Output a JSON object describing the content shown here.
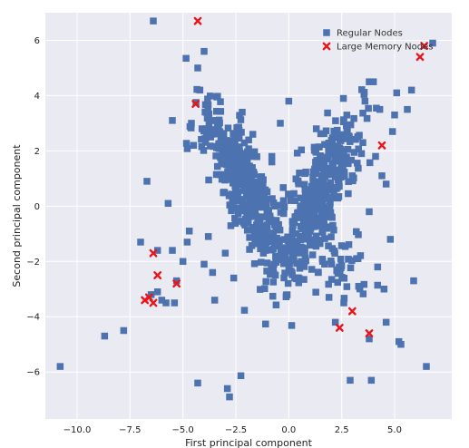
{
  "chart_data": {
    "type": "scatter",
    "xlabel": "First principal component",
    "ylabel": "Second principal component",
    "xlim": [
      -11.5,
      7.7
    ],
    "ylim": [
      -7.7,
      7.0
    ],
    "xticks": [
      -10.0,
      -7.5,
      -5.0,
      -2.5,
      0.0,
      2.5,
      5.0
    ],
    "xtick_labels": [
      "−10.0",
      "−7.5",
      "−5.0",
      "−2.5",
      "0.0",
      "2.5",
      "5.0"
    ],
    "yticks": [
      -6,
      -4,
      -2,
      0,
      2,
      4,
      6
    ],
    "ytick_labels": [
      "−6",
      "−4",
      "−2",
      "0",
      "2",
      "4",
      "6"
    ],
    "grid": true,
    "legend_position": "top-right",
    "colors": {
      "regular": "#4c72b0",
      "large": "#e8161b",
      "background": "#eaeaf2",
      "grid": "#ffffff"
    },
    "series": [
      {
        "name": "Regular Nodes",
        "marker": "square",
        "points": [
          [
            -10.8,
            -5.8
          ],
          [
            -8.7,
            -4.7
          ],
          [
            -7.8,
            -4.5
          ],
          [
            -7.0,
            -1.3
          ],
          [
            -6.7,
            0.9
          ],
          [
            -6.4,
            6.7
          ],
          [
            -6.5,
            -3.2
          ],
          [
            -6.2,
            -3.1
          ],
          [
            -6.2,
            -1.6
          ],
          [
            -6.0,
            -3.4
          ],
          [
            -5.8,
            -3.5
          ],
          [
            -5.7,
            0.1
          ],
          [
            -5.5,
            3.1
          ],
          [
            -5.5,
            -1.6
          ],
          [
            -5.4,
            -3.5
          ],
          [
            -5.3,
            -2.7
          ],
          [
            -5.0,
            -2.0
          ],
          [
            -4.8,
            -1.3
          ],
          [
            -4.7,
            -0.9
          ],
          [
            -4.6,
            3.0
          ],
          [
            -4.5,
            2.2
          ],
          [
            -4.3,
            5.0
          ],
          [
            -4.2,
            4.2
          ],
          [
            -4.1,
            2.8
          ],
          [
            -4.0,
            5.6
          ],
          [
            -4.0,
            -2.1
          ],
          [
            -3.8,
            -1.1
          ],
          [
            -3.6,
            -2.4
          ],
          [
            -3.5,
            3.1
          ],
          [
            -3.5,
            -3.4
          ],
          [
            -4.3,
            -6.4
          ],
          [
            -2.9,
            -6.6
          ],
          [
            -2.8,
            -6.9
          ],
          [
            -2.6,
            -2.6
          ],
          [
            -3.2,
            2.5
          ],
          [
            -2.0,
            1.6
          ],
          [
            -1.5,
            0.3
          ],
          [
            -1.2,
            -1.7
          ],
          [
            -0.8,
            1.8
          ],
          [
            -0.4,
            3.0
          ],
          [
            0.0,
            3.8
          ],
          [
            -0.6,
            -0.7
          ],
          [
            0.2,
            -0.7
          ],
          [
            0.5,
            1.2
          ],
          [
            0.8,
            -1.0
          ],
          [
            1.3,
            2.8
          ],
          [
            1.6,
            -2.0
          ],
          [
            1.9,
            -3.3
          ],
          [
            2.0,
            0.6
          ],
          [
            2.4,
            -2.2
          ],
          [
            2.2,
            -4.2
          ],
          [
            2.6,
            -3.5
          ],
          [
            2.9,
            -6.3
          ],
          [
            3.0,
            1.1
          ],
          [
            3.2,
            -1.9
          ],
          [
            3.3,
            -2.9
          ],
          [
            3.5,
            2.3
          ],
          [
            3.6,
            3.8
          ],
          [
            3.8,
            4.5
          ],
          [
            3.8,
            -0.2
          ],
          [
            3.8,
            -4.8
          ],
          [
            3.9,
            -6.3
          ],
          [
            4.1,
            1.8
          ],
          [
            4.2,
            -2.2
          ],
          [
            4.3,
            3.5
          ],
          [
            4.4,
            1.1
          ],
          [
            4.5,
            -3.0
          ],
          [
            4.6,
            -4.2
          ],
          [
            4.6,
            0.8
          ],
          [
            4.8,
            -1.2
          ],
          [
            4.9,
            2.7
          ],
          [
            5.0,
            3.3
          ],
          [
            5.1,
            4.1
          ],
          [
            5.2,
            -4.9
          ],
          [
            5.3,
            -5.0
          ],
          [
            5.6,
            3.5
          ],
          [
            5.8,
            4.2
          ],
          [
            5.9,
            -2.7
          ],
          [
            6.5,
            -5.8
          ],
          [
            6.8,
            5.9
          ],
          [
            -1.1,
            -1.6
          ],
          [
            -0.8,
            1.6
          ],
          [
            0.3,
            0.2
          ],
          [
            1.4,
            -2.4
          ],
          [
            -1.7,
            2.6
          ],
          [
            -2.2,
            3.4
          ],
          [
            -3.0,
            -1.7
          ],
          [
            4.0,
            4.5
          ]
        ]
      },
      {
        "name": "Large Memory Nodes",
        "marker": "x",
        "points": [
          [
            -4.3,
            6.7
          ],
          [
            -4.4,
            3.7
          ],
          [
            -6.4,
            -1.7
          ],
          [
            -6.2,
            -2.5
          ],
          [
            -5.3,
            -2.8
          ],
          [
            -6.8,
            -3.4
          ],
          [
            -6.6,
            -3.3
          ],
          [
            -6.4,
            -3.5
          ],
          [
            3.0,
            -3.8
          ],
          [
            2.4,
            -4.4
          ],
          [
            3.8,
            -4.6
          ],
          [
            4.4,
            2.2
          ],
          [
            6.2,
            5.4
          ],
          [
            6.4,
            5.8
          ]
        ]
      }
    ],
    "clusters": [
      {
        "series": "Regular Nodes",
        "center": [
          -2.0,
          0.6
        ],
        "spread": [
          0.55,
          1.45
        ],
        "tilt": -0.55,
        "count": 420
      },
      {
        "series": "Regular Nodes",
        "center": [
          1.3,
          0.3
        ],
        "spread": [
          0.6,
          1.6
        ],
        "tilt": 0.5,
        "count": 420
      },
      {
        "series": "Regular Nodes",
        "center": [
          -3.0,
          2.0
        ],
        "spread": [
          0.8,
          0.6
        ],
        "tilt": 0.0,
        "count": 35
      },
      {
        "series": "Regular Nodes",
        "center": [
          2.6,
          -2.2
        ],
        "spread": [
          0.7,
          0.7
        ],
        "tilt": 0.0,
        "count": 40
      }
    ]
  }
}
